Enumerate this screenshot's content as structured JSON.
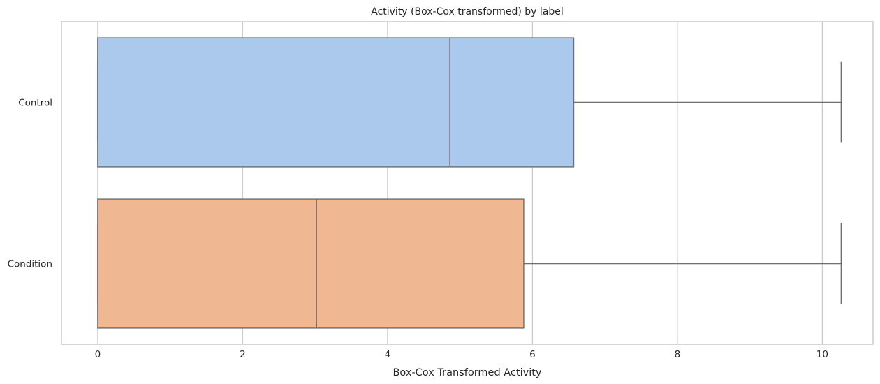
{
  "chart_data": {
    "type": "box",
    "orientation": "horizontal",
    "title": "Activity (Box-Cox transformed) by label",
    "xlabel": "Box-Cox Transformed Activity",
    "ylabel": "",
    "xlim": [
      -0.5,
      10.7
    ],
    "xticks": [
      0,
      2,
      4,
      6,
      8,
      10
    ],
    "xtick_labels": [
      "0",
      "2",
      "4",
      "6",
      "8",
      "10"
    ],
    "grid": true,
    "categories": [
      "Control",
      "Condition"
    ],
    "boxes": [
      {
        "label": "Control",
        "whisker_low": 0.0,
        "q1": 0.0,
        "median": 4.86,
        "q3": 6.57,
        "whisker_high": 10.26,
        "color": "#abc9ed"
      },
      {
        "label": "Condition",
        "whisker_low": 0.0,
        "q1": 0.0,
        "median": 3.02,
        "q3": 5.88,
        "whisker_high": 10.26,
        "color": "#f0b793"
      }
    ]
  }
}
